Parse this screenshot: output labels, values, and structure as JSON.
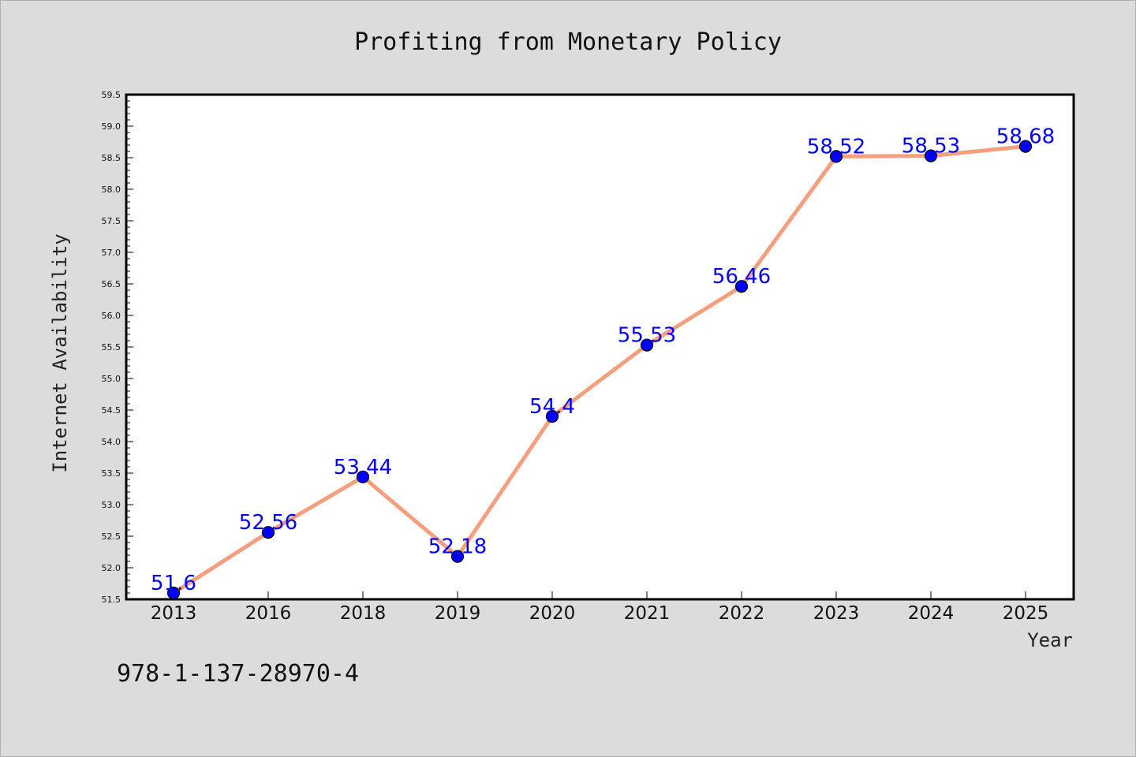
{
  "chart_data": {
    "type": "line",
    "title": "Profiting from Monetary Policy",
    "xlabel": "Year",
    "ylabel": "Internet Availability",
    "categories": [
      "2013",
      "2016",
      "2018",
      "2019",
      "2020",
      "2021",
      "2022",
      "2023",
      "2024",
      "2025"
    ],
    "series": [
      {
        "values": [
          51.6,
          52.56,
          53.44,
          52.18,
          54.4,
          55.53,
          56.46,
          58.52,
          58.53,
          58.68
        ],
        "labels": [
          "51.6",
          "52.56",
          "53.44",
          "52.18",
          "54.4",
          "55.53",
          "56.46",
          "58.52",
          "58.53",
          "58.68"
        ],
        "line_color": "#f4a07f",
        "marker_color": "#0000ff"
      }
    ],
    "ylim": [
      51.5,
      59.5
    ],
    "yticks": [
      "51.5",
      "52.0",
      "52.5",
      "53.0",
      "53.5",
      "54.0",
      "54.5",
      "55.0",
      "55.5",
      "56.0",
      "56.5",
      "57.0",
      "57.5",
      "58.0",
      "58.5",
      "59.0",
      "59.5"
    ],
    "grid": false,
    "legend": "none"
  },
  "footer": {
    "isbn": "978-1-137-28970-4"
  }
}
